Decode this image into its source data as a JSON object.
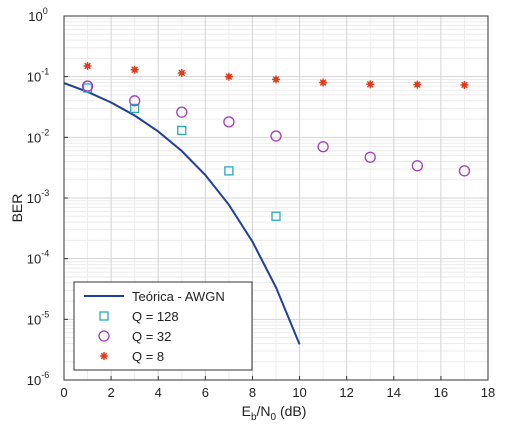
{
  "chart_data": {
    "type": "scatter",
    "xlabel": {
      "main": "E",
      "sub1": "b",
      "mid": "/N",
      "sub2": "0",
      "tail": " (dB)"
    },
    "ylabel": "BER",
    "xlim": [
      0,
      18
    ],
    "ylim": [
      1e-06,
      1
    ],
    "yscale": "log",
    "grid": true,
    "x_ticks": [
      0,
      2,
      4,
      6,
      8,
      10,
      12,
      14,
      16,
      18
    ],
    "x_tick_labels": [
      "0",
      "2",
      "4",
      "6",
      "8",
      "10",
      "12",
      "14",
      "16",
      "18"
    ],
    "y_ticks": [
      {
        "value": 1,
        "base": "10",
        "exp": "0"
      },
      {
        "value": 0.1,
        "base": "10",
        "exp": "-1"
      },
      {
        "value": 0.01,
        "base": "10",
        "exp": "-2"
      },
      {
        "value": 0.001,
        "base": "10",
        "exp": "-3"
      },
      {
        "value": 0.0001,
        "base": "10",
        "exp": "-4"
      },
      {
        "value": 1e-05,
        "base": "10",
        "exp": "-5"
      },
      {
        "value": 1e-06,
        "base": "10",
        "exp": "-6"
      }
    ],
    "legend_position": "bottom-left",
    "series": [
      {
        "name": "Teórica - AWGN",
        "kind": "line",
        "color": "#1f3f99",
        "x": [
          0,
          1,
          2,
          3,
          4,
          5,
          6,
          7,
          8,
          9,
          10
        ],
        "y": [
          0.0786,
          0.0563,
          0.0375,
          0.0229,
          0.0125,
          0.00595,
          0.00239,
          0.000773,
          0.000191,
          3.36e-05,
          3.87e-06
        ]
      },
      {
        "name": "Q = 128",
        "kind": "square",
        "color": "#2aa8b8",
        "x": [
          1,
          3,
          5,
          7,
          9
        ],
        "y": [
          0.065,
          0.03,
          0.013,
          0.0028,
          0.0005
        ]
      },
      {
        "name": "Q = 32",
        "kind": "circle",
        "color": "#a23fb8",
        "x": [
          1,
          3,
          5,
          7,
          9,
          11,
          13,
          15,
          17
        ],
        "y": [
          0.07,
          0.04,
          0.026,
          0.018,
          0.0105,
          0.007,
          0.0047,
          0.0034,
          0.0028
        ]
      },
      {
        "name": "Q = 8",
        "kind": "star",
        "color": "#e23a1a",
        "x": [
          1,
          3,
          5,
          7,
          9,
          11,
          13,
          15,
          17
        ],
        "y": [
          0.15,
          0.13,
          0.115,
          0.1,
          0.09,
          0.08,
          0.075,
          0.074,
          0.073
        ]
      }
    ]
  }
}
